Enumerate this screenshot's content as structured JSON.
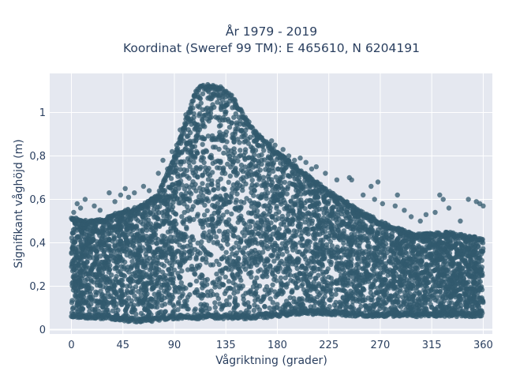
{
  "chart_data": {
    "type": "scatter",
    "title_lines": [
      "År 1979 - 2019",
      "Koordinat (Sweref 99 TM): E 465610, N 6204191"
    ],
    "xlabel": "Vågriktning (grader)",
    "ylabel": "Signifikant våghöjd (m)",
    "xlim": [
      -19,
      368
    ],
    "ylim": [
      -0.02,
      1.18
    ],
    "xticks": [
      0,
      45,
      90,
      135,
      180,
      225,
      270,
      315,
      360
    ],
    "yticks": [
      0,
      0.2,
      0.4,
      0.6,
      0.8,
      1
    ],
    "ytick_labels": [
      "0",
      "0,2",
      "0,4",
      "0,6",
      "0,8",
      "1"
    ],
    "grid": true,
    "marker_color": "#325a6e",
    "plot_bg": "#e5e8f0",
    "series": [
      {
        "envelope": {
          "x": [
            0,
            15,
            30,
            45,
            60,
            75,
            90,
            100,
            110,
            120,
            130,
            140,
            150,
            160,
            180,
            200,
            225,
            250,
            270,
            300,
            330,
            360
          ],
          "top": [
            0.52,
            0.5,
            0.52,
            0.55,
            0.57,
            0.62,
            0.8,
            0.97,
            1.12,
            1.13,
            1.12,
            1.08,
            1.0,
            0.92,
            0.82,
            0.74,
            0.64,
            0.56,
            0.5,
            0.44,
            0.45,
            0.42
          ],
          "bottom": [
            0.06,
            0.05,
            0.05,
            0.04,
            0.03,
            0.04,
            0.05,
            0.05,
            0.05,
            0.05,
            0.05,
            0.05,
            0.05,
            0.05,
            0.06,
            0.07,
            0.07,
            0.06,
            0.06,
            0.06,
            0.06,
            0.06
          ]
        },
        "outliers": [
          [
            2,
            0.54
          ],
          [
            5,
            0.58
          ],
          [
            8,
            0.56
          ],
          [
            12,
            0.6
          ],
          [
            20,
            0.57
          ],
          [
            25,
            0.55
          ],
          [
            33,
            0.63
          ],
          [
            38,
            0.59
          ],
          [
            43,
            0.62
          ],
          [
            47,
            0.65
          ],
          [
            50,
            0.61
          ],
          [
            55,
            0.63
          ],
          [
            63,
            0.66
          ],
          [
            68,
            0.64
          ],
          [
            70,
            0.6
          ],
          [
            76,
            0.72
          ],
          [
            80,
            0.78
          ],
          [
            84,
            0.74
          ],
          [
            88,
            0.82
          ],
          [
            92,
            0.85
          ],
          [
            95,
            0.92
          ],
          [
            100,
            0.99
          ],
          [
            175,
            0.87
          ],
          [
            178,
            0.85
          ],
          [
            185,
            0.83
          ],
          [
            190,
            0.8
          ],
          [
            195,
            0.78
          ],
          [
            200,
            0.79
          ],
          [
            205,
            0.77
          ],
          [
            210,
            0.74
          ],
          [
            214,
            0.75
          ],
          [
            222,
            0.72
          ],
          [
            232,
            0.69
          ],
          [
            243,
            0.7
          ],
          [
            245,
            0.69
          ],
          [
            255,
            0.62
          ],
          [
            262,
            0.66
          ],
          [
            265,
            0.6
          ],
          [
            268,
            0.68
          ],
          [
            272,
            0.58
          ],
          [
            283,
            0.57
          ],
          [
            285,
            0.62
          ],
          [
            291,
            0.55
          ],
          [
            297,
            0.52
          ],
          [
            305,
            0.5
          ],
          [
            310,
            0.53
          ],
          [
            318,
            0.54
          ],
          [
            322,
            0.62
          ],
          [
            325,
            0.6
          ],
          [
            330,
            0.56
          ],
          [
            340,
            0.5
          ],
          [
            347,
            0.6
          ],
          [
            354,
            0.59
          ],
          [
            357,
            0.58
          ],
          [
            360,
            0.57
          ]
        ]
      }
    ]
  }
}
